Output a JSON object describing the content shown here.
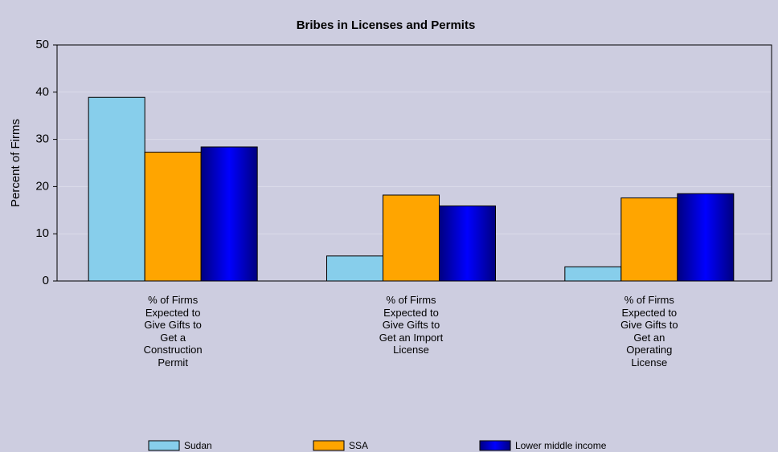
{
  "chart_data": {
    "type": "bar",
    "title": "Bribes in Licenses and Permits",
    "ylabel": "Percent of Firms",
    "categories": [
      "% of Firms Expected to Give Gifts to Get a Construction Permit",
      "% of Firms Expected to Give Gifts to Get an Import License",
      "% of Firms Expected to Give Gifts to Get an Operating License"
    ],
    "series": [
      {
        "name": "Sudan",
        "color": "#87ceeb",
        "values": [
          38.9,
          5.3,
          3.0
        ]
      },
      {
        "name": "SSA",
        "color": "#ffa500",
        "values": [
          27.3,
          18.2,
          17.6
        ]
      },
      {
        "name": "Lower middle income",
        "color": "#0000cd",
        "values": [
          28.4,
          15.9,
          18.5
        ]
      }
    ],
    "ylim": [
      0,
      50
    ],
    "yticks": [
      0,
      10,
      20,
      30,
      40,
      50
    ],
    "grid": true,
    "legend": "bottom"
  }
}
